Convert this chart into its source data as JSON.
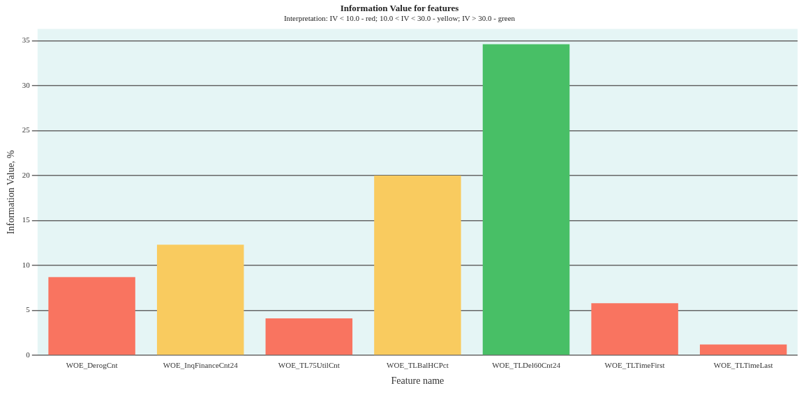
{
  "chart_data": {
    "type": "bar",
    "title": "Information Value for features",
    "subtitle": "Interpretation: IV < 10.0 - red; 10.0 < IV < 30.0 - yellow; IV > 30.0 - green",
    "xlabel": "Feature name",
    "ylabel": "Information Value, %",
    "categories": [
      "WOE_DerogCnt",
      "WOE_InqFinanceCnt24",
      "WOE_TL75UtilCnt",
      "WOE_TLBalHCPct",
      "WOE_TLDel60Cnt24",
      "WOE_TLTimeFirst",
      "WOE_TLTimeLast"
    ],
    "values": [
      8.7,
      12.3,
      4.1,
      20.0,
      34.6,
      5.8,
      1.2
    ],
    "colors": [
      "#f97460",
      "#f9cb5f",
      "#f97460",
      "#f9cb5f",
      "#48bf66",
      "#f97460",
      "#f97460"
    ],
    "ylim": [
      0,
      36.3
    ],
    "yticks": [
      0,
      5,
      10,
      15,
      20,
      25,
      30,
      35
    ],
    "grid": "y",
    "legend": false
  }
}
